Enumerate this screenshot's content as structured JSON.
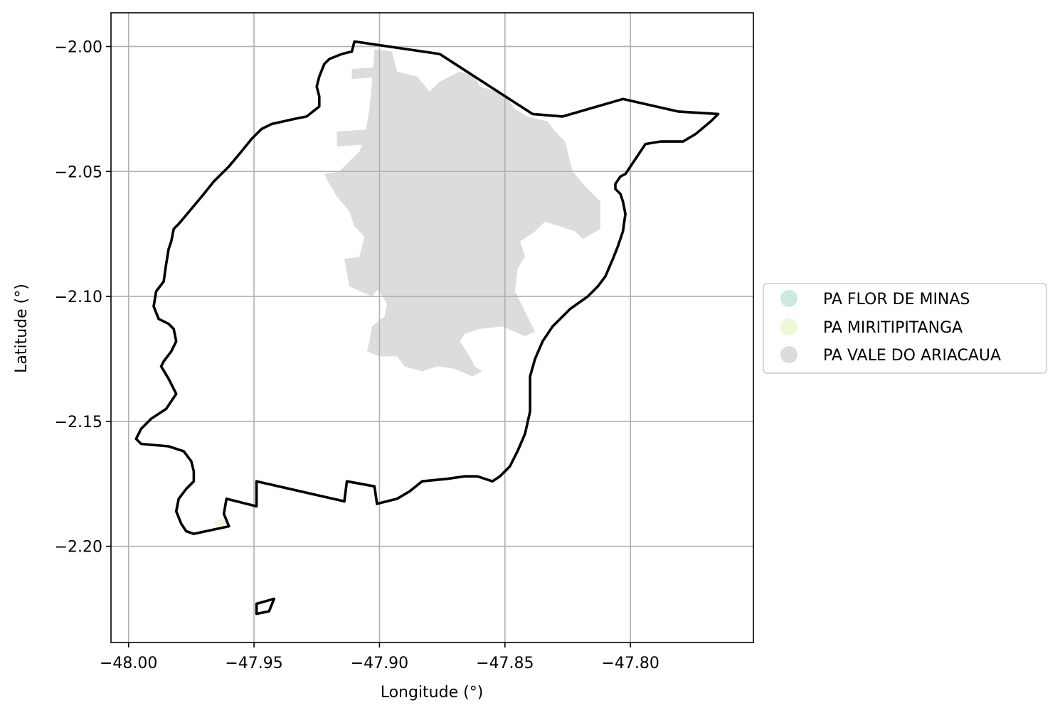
{
  "chart_data": {
    "type": "map",
    "xlabel": "Longitude (°)",
    "ylabel": "Latitude (°)",
    "xlim": [
      -48.007,
      -47.751
    ],
    "ylim": [
      -2.2385,
      -1.9865
    ],
    "xticks": [
      -48.0,
      -47.95,
      -47.9,
      -47.85,
      -47.8
    ],
    "xtick_labels": [
      "−48.00",
      "−47.95",
      "−47.90",
      "−47.85",
      "−47.80"
    ],
    "yticks": [
      -2.0,
      -2.05,
      -2.1,
      -2.15,
      -2.2
    ],
    "ytick_labels": [
      "−2.00",
      "−2.05",
      "−2.10",
      "−2.15",
      "−2.20"
    ],
    "grid": true,
    "legend_position": "center-right-outside",
    "legend": [
      {
        "label": "PA FLOR DE MINAS",
        "color": "#cdeade"
      },
      {
        "label": "PA MIRITIPITANGA",
        "color": "#eef7d8"
      },
      {
        "label": "PA VALE DO ARIACAUA",
        "color": "#dcdcdc"
      }
    ],
    "boundary_color": "#000000",
    "boundary": [
      [
        [
          -47.91,
          -1.998
        ],
        [
          -47.876,
          -2.003
        ],
        [
          -47.839,
          -2.027
        ],
        [
          -47.827,
          -2.028
        ],
        [
          -47.803,
          -2.021
        ],
        [
          -47.781,
          -2.026
        ],
        [
          -47.765,
          -2.027
        ],
        [
          -47.768,
          -2.03
        ],
        [
          -47.774,
          -2.035
        ],
        [
          -47.779,
          -2.038
        ],
        [
          -47.786,
          -2.038
        ],
        [
          -47.788,
          -2.038
        ],
        [
          -47.794,
          -2.039
        ],
        [
          -47.798,
          -2.045
        ],
        [
          -47.802,
          -2.051
        ],
        [
          -47.804,
          -2.052
        ],
        [
          -47.806,
          -2.055
        ],
        [
          -47.806,
          -2.057
        ],
        [
          -47.804,
          -2.059
        ],
        [
          -47.803,
          -2.062
        ],
        [
          -47.802,
          -2.067
        ],
        [
          -47.803,
          -2.074
        ],
        [
          -47.805,
          -2.08
        ],
        [
          -47.807,
          -2.085
        ],
        [
          -47.81,
          -2.092
        ],
        [
          -47.813,
          -2.096
        ],
        [
          -47.817,
          -2.1
        ],
        [
          -47.824,
          -2.105
        ],
        [
          -47.829,
          -2.11
        ],
        [
          -47.831,
          -2.112
        ],
        [
          -47.835,
          -2.118
        ],
        [
          -47.838,
          -2.125
        ],
        [
          -47.84,
          -2.132
        ],
        [
          -47.84,
          -2.146
        ],
        [
          -47.842,
          -2.155
        ],
        [
          -47.845,
          -2.162
        ],
        [
          -47.848,
          -2.168
        ],
        [
          -47.852,
          -2.172
        ],
        [
          -47.855,
          -2.174
        ],
        [
          -47.858,
          -2.173
        ],
        [
          -47.861,
          -2.172
        ],
        [
          -47.866,
          -2.172
        ],
        [
          -47.873,
          -2.173
        ],
        [
          -47.883,
          -2.174
        ],
        [
          -47.888,
          -2.178
        ],
        [
          -47.893,
          -2.181
        ],
        [
          -47.901,
          -2.183
        ],
        [
          -47.902,
          -2.176
        ],
        [
          -47.913,
          -2.174
        ],
        [
          -47.914,
          -2.182
        ],
        [
          -47.949,
          -2.174
        ],
        [
          -47.949,
          -2.184
        ],
        [
          -47.961,
          -2.181
        ],
        [
          -47.962,
          -2.187
        ],
        [
          -47.96,
          -2.192
        ],
        [
          -47.974,
          -2.195
        ],
        [
          -47.977,
          -2.194
        ],
        [
          -47.979,
          -2.191
        ],
        [
          -47.981,
          -2.186
        ],
        [
          -47.98,
          -2.181
        ],
        [
          -47.977,
          -2.177
        ],
        [
          -47.974,
          -2.174
        ],
        [
          -47.974,
          -2.17
        ],
        [
          -47.975,
          -2.166
        ],
        [
          -47.978,
          -2.162
        ],
        [
          -47.984,
          -2.16
        ],
        [
          -47.995,
          -2.159
        ],
        [
          -47.997,
          -2.157
        ],
        [
          -47.995,
          -2.153
        ],
        [
          -47.991,
          -2.149
        ],
        [
          -47.985,
          -2.145
        ],
        [
          -47.981,
          -2.139
        ],
        [
          -47.984,
          -2.133
        ],
        [
          -47.987,
          -2.128
        ],
        [
          -47.986,
          -2.126
        ],
        [
          -47.983,
          -2.122
        ],
        [
          -47.981,
          -2.118
        ],
        [
          -47.982,
          -2.113
        ],
        [
          -47.984,
          -2.111
        ],
        [
          -47.988,
          -2.109
        ],
        [
          -47.99,
          -2.104
        ],
        [
          -47.989,
          -2.098
        ],
        [
          -47.986,
          -2.094
        ],
        [
          -47.985,
          -2.087
        ],
        [
          -47.984,
          -2.081
        ],
        [
          -47.983,
          -2.078
        ],
        [
          -47.982,
          -2.073
        ],
        [
          -47.98,
          -2.071
        ],
        [
          -47.975,
          -2.065
        ],
        [
          -47.97,
          -2.059
        ],
        [
          -47.966,
          -2.054
        ],
        [
          -47.96,
          -2.048
        ],
        [
          -47.955,
          -2.042
        ],
        [
          -47.951,
          -2.037
        ],
        [
          -47.947,
          -2.033
        ],
        [
          -47.943,
          -2.031
        ],
        [
          -47.934,
          -2.029
        ],
        [
          -47.929,
          -2.028
        ],
        [
          -47.924,
          -2.024
        ],
        [
          -47.924,
          -2.02
        ],
        [
          -47.925,
          -2.016
        ],
        [
          -47.924,
          -2.012
        ],
        [
          -47.922,
          -2.007
        ],
        [
          -47.92,
          -2.005
        ],
        [
          -47.915,
          -2.003
        ],
        [
          -47.911,
          -2.002
        ],
        [
          -47.91,
          -1.998
        ]
      ],
      [
        [
          -47.949,
          -2.223
        ],
        [
          -47.942,
          -2.221
        ],
        [
          -47.944,
          -2.226
        ],
        [
          -47.949,
          -2.227
        ],
        [
          -47.949,
          -2.223
        ]
      ]
    ],
    "regions": [
      {
        "name": "PA VALE DO ARIACAUA",
        "color": "#dcdcdc",
        "polygons": [
          [
            [
              -47.902,
              -2.001
            ],
            [
              -47.895,
              -2.002
            ],
            [
              -47.893,
              -2.01
            ],
            [
              -47.885,
              -2.012
            ],
            [
              -47.88,
              -2.018
            ],
            [
              -47.876,
              -2.014
            ],
            [
              -47.868,
              -2.01
            ],
            [
              -47.862,
              -2.012
            ],
            [
              -47.86,
              -2.016
            ],
            [
              -47.853,
              -2.018
            ],
            [
              -47.849,
              -2.021
            ],
            [
              -47.846,
              -2.025
            ],
            [
              -47.841,
              -2.028
            ],
            [
              -47.833,
              -2.03
            ],
            [
              -47.83,
              -2.034
            ],
            [
              -47.826,
              -2.038
            ],
            [
              -47.823,
              -2.05
            ],
            [
              -47.818,
              -2.056
            ],
            [
              -47.812,
              -2.062
            ],
            [
              -47.812,
              -2.066
            ],
            [
              -47.812,
              -2.073
            ],
            [
              -47.819,
              -2.077
            ],
            [
              -47.822,
              -2.074
            ],
            [
              -47.834,
              -2.07
            ],
            [
              -47.838,
              -2.074
            ],
            [
              -47.844,
              -2.078
            ],
            [
              -47.842,
              -2.084
            ],
            [
              -47.845,
              -2.089
            ],
            [
              -47.846,
              -2.098
            ],
            [
              -47.843,
              -2.104
            ],
            [
              -47.841,
              -2.108
            ],
            [
              -47.838,
              -2.114
            ],
            [
              -47.842,
              -2.116
            ],
            [
              -47.851,
              -2.112
            ],
            [
              -47.86,
              -2.113
            ],
            [
              -47.866,
              -2.115
            ],
            [
              -47.868,
              -2.118
            ],
            [
              -47.866,
              -2.121
            ],
            [
              -47.864,
              -2.124
            ],
            [
              -47.862,
              -2.128
            ],
            [
              -47.859,
              -2.13
            ],
            [
              -47.863,
              -2.132
            ],
            [
              -47.87,
              -2.129
            ],
            [
              -47.877,
              -2.128
            ],
            [
              -47.883,
              -2.13
            ],
            [
              -47.89,
              -2.128
            ],
            [
              -47.893,
              -2.124
            ],
            [
              -47.9,
              -2.124
            ],
            [
              -47.905,
              -2.122
            ],
            [
              -47.904,
              -2.118
            ],
            [
              -47.903,
              -2.112
            ],
            [
              -47.898,
              -2.108
            ],
            [
              -47.897,
              -2.103
            ],
            [
              -47.9,
              -2.098
            ],
            [
              -47.905,
              -2.094
            ],
            [
              -47.908,
              -2.09
            ],
            [
              -47.908,
              -2.084
            ],
            [
              -47.906,
              -2.076
            ],
            [
              -47.91,
              -2.072
            ],
            [
              -47.912,
              -2.066
            ],
            [
              -47.917,
              -2.06
            ],
            [
              -47.92,
              -2.055
            ],
            [
              -47.922,
              -2.051
            ],
            [
              -47.916,
              -2.05
            ],
            [
              -47.912,
              -2.046
            ],
            [
              -47.908,
              -2.042
            ],
            [
              -47.906,
              -2.037
            ],
            [
              -47.905,
              -2.031
            ],
            [
              -47.904,
              -2.025
            ],
            [
              -47.903,
              -2.015
            ],
            [
              -47.902,
              -2.001
            ]
          ],
          [
            [
              -47.917,
              -2.034
            ],
            [
              -47.902,
              -2.033
            ],
            [
              -47.902,
              -2.039
            ],
            [
              -47.917,
              -2.04
            ],
            [
              -47.917,
              -2.034
            ]
          ],
          [
            [
              -47.911,
              -2.009
            ],
            [
              -47.898,
              -2.008
            ],
            [
              -47.898,
              -2.012
            ],
            [
              -47.911,
              -2.013
            ],
            [
              -47.911,
              -2.009
            ]
          ],
          [
            [
              -47.914,
              -2.085
            ],
            [
              -47.9,
              -2.083
            ],
            [
              -47.897,
              -2.093
            ],
            [
              -47.903,
              -2.1
            ],
            [
              -47.912,
              -2.096
            ],
            [
              -47.914,
              -2.085
            ]
          ]
        ]
      },
      {
        "name": "PA MIRITIPITANGA",
        "color": "#eef7d8",
        "polygons": [
          [
            [
              -47.966,
              -2.19
            ],
            [
              -47.962,
              -2.189
            ],
            [
              -47.961,
              -2.191
            ],
            [
              -47.965,
              -2.192
            ],
            [
              -47.966,
              -2.19
            ]
          ]
        ]
      }
    ]
  }
}
